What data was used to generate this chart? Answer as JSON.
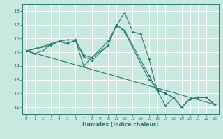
{
  "title": "",
  "xlabel": "Humidex (Indice chaleur)",
  "ylabel": "",
  "xlim": [
    -0.5,
    23.5
  ],
  "ylim": [
    10.5,
    18.5
  ],
  "xticks": [
    0,
    1,
    2,
    3,
    4,
    5,
    6,
    7,
    8,
    9,
    10,
    11,
    12,
    13,
    14,
    15,
    16,
    17,
    18,
    19,
    20,
    21,
    22,
    23
  ],
  "yticks": [
    11,
    12,
    13,
    14,
    15,
    16,
    17,
    18
  ],
  "background_color": "#c8e8e0",
  "grid_color": "#ffffff",
  "line_color": "#2e7b6e",
  "lines": [
    {
      "x": [
        0,
        1,
        2,
        3,
        4,
        5,
        6,
        7,
        8,
        10,
        11,
        12,
        13,
        14,
        15,
        16,
        17,
        18,
        19,
        20,
        21,
        22,
        23
      ],
      "y": [
        15.1,
        14.9,
        15.1,
        15.6,
        15.8,
        15.9,
        15.9,
        14.0,
        14.6,
        15.8,
        16.9,
        17.9,
        16.5,
        16.3,
        14.5,
        12.2,
        11.1,
        11.7,
        11.0,
        11.6,
        11.7,
        11.7,
        11.2
      ],
      "marker": true
    },
    {
      "x": [
        0,
        3,
        4,
        5,
        6,
        7,
        8,
        10,
        11,
        12,
        15,
        16,
        17,
        18,
        19,
        20,
        21,
        22,
        23
      ],
      "y": [
        15.1,
        15.6,
        15.8,
        15.7,
        15.8,
        14.7,
        14.4,
        15.5,
        17.0,
        16.5,
        13.0,
        12.3,
        12.0,
        11.7,
        11.0,
        11.6,
        11.7,
        11.7,
        11.2
      ],
      "marker": true
    },
    {
      "x": [
        0,
        3,
        4,
        5,
        6,
        7,
        8,
        10,
        11,
        12,
        15,
        16,
        17,
        18,
        19,
        20,
        21,
        22,
        23
      ],
      "y": [
        15.1,
        15.5,
        15.8,
        15.6,
        15.9,
        14.8,
        14.6,
        15.5,
        17.0,
        16.6,
        13.3,
        12.2,
        12.0,
        11.7,
        11.0,
        11.6,
        11.7,
        11.7,
        11.2
      ],
      "marker": true
    },
    {
      "x": [
        0,
        23
      ],
      "y": [
        15.1,
        11.2
      ],
      "marker": false
    }
  ]
}
